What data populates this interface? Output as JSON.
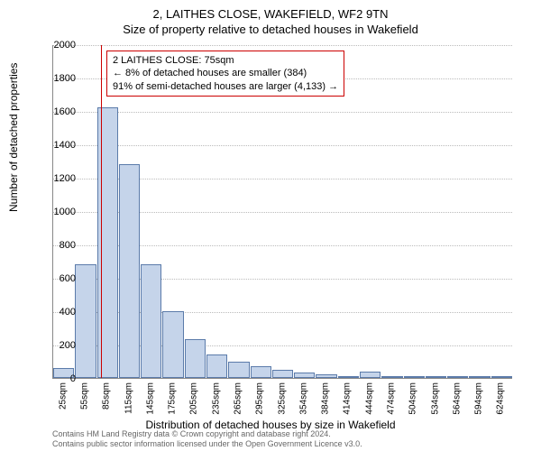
{
  "title_main": "2, LAITHES CLOSE, WAKEFIELD, WF2 9TN",
  "title_sub": "Size of property relative to detached houses in Wakefield",
  "y_axis_label": "Number of detached properties",
  "x_axis_label": "Distribution of detached houses by size in Wakefield",
  "footer_line1": "Contains HM Land Registry data © Crown copyright and database right 2024.",
  "footer_line2": "Contains public sector information licensed under the Open Government Licence v3.0.",
  "annotation": {
    "line1": "2 LAITHES CLOSE: 75sqm",
    "line2": "← 8% of detached houses are smaller (384)",
    "line3": "91% of semi-detached houses are larger (4,133) →"
  },
  "chart": {
    "type": "histogram",
    "ylim": [
      0,
      2000
    ],
    "ytick_step": 200,
    "bar_fill": "#c5d4ea",
    "bar_stroke": "#5b7baa",
    "marker_color": "#cc0000",
    "grid_color": "#bbbbbb",
    "background_color": "#ffffff",
    "title_fontsize": 13,
    "label_fontsize": 12,
    "tick_fontsize": 10,
    "marker_x_value": 75,
    "x_start": 10,
    "x_bin_width": 30,
    "x_labels": [
      "25sqm",
      "55sqm",
      "85sqm",
      "115sqm",
      "145sqm",
      "175sqm",
      "205sqm",
      "235sqm",
      "265sqm",
      "295sqm",
      "325sqm",
      "354sqm",
      "384sqm",
      "414sqm",
      "444sqm",
      "474sqm",
      "504sqm",
      "534sqm",
      "564sqm",
      "594sqm",
      "624sqm"
    ],
    "values": [
      60,
      680,
      1620,
      1280,
      680,
      400,
      230,
      140,
      95,
      70,
      50,
      30,
      20,
      10,
      40,
      8,
      5,
      3,
      2,
      2,
      1
    ]
  }
}
